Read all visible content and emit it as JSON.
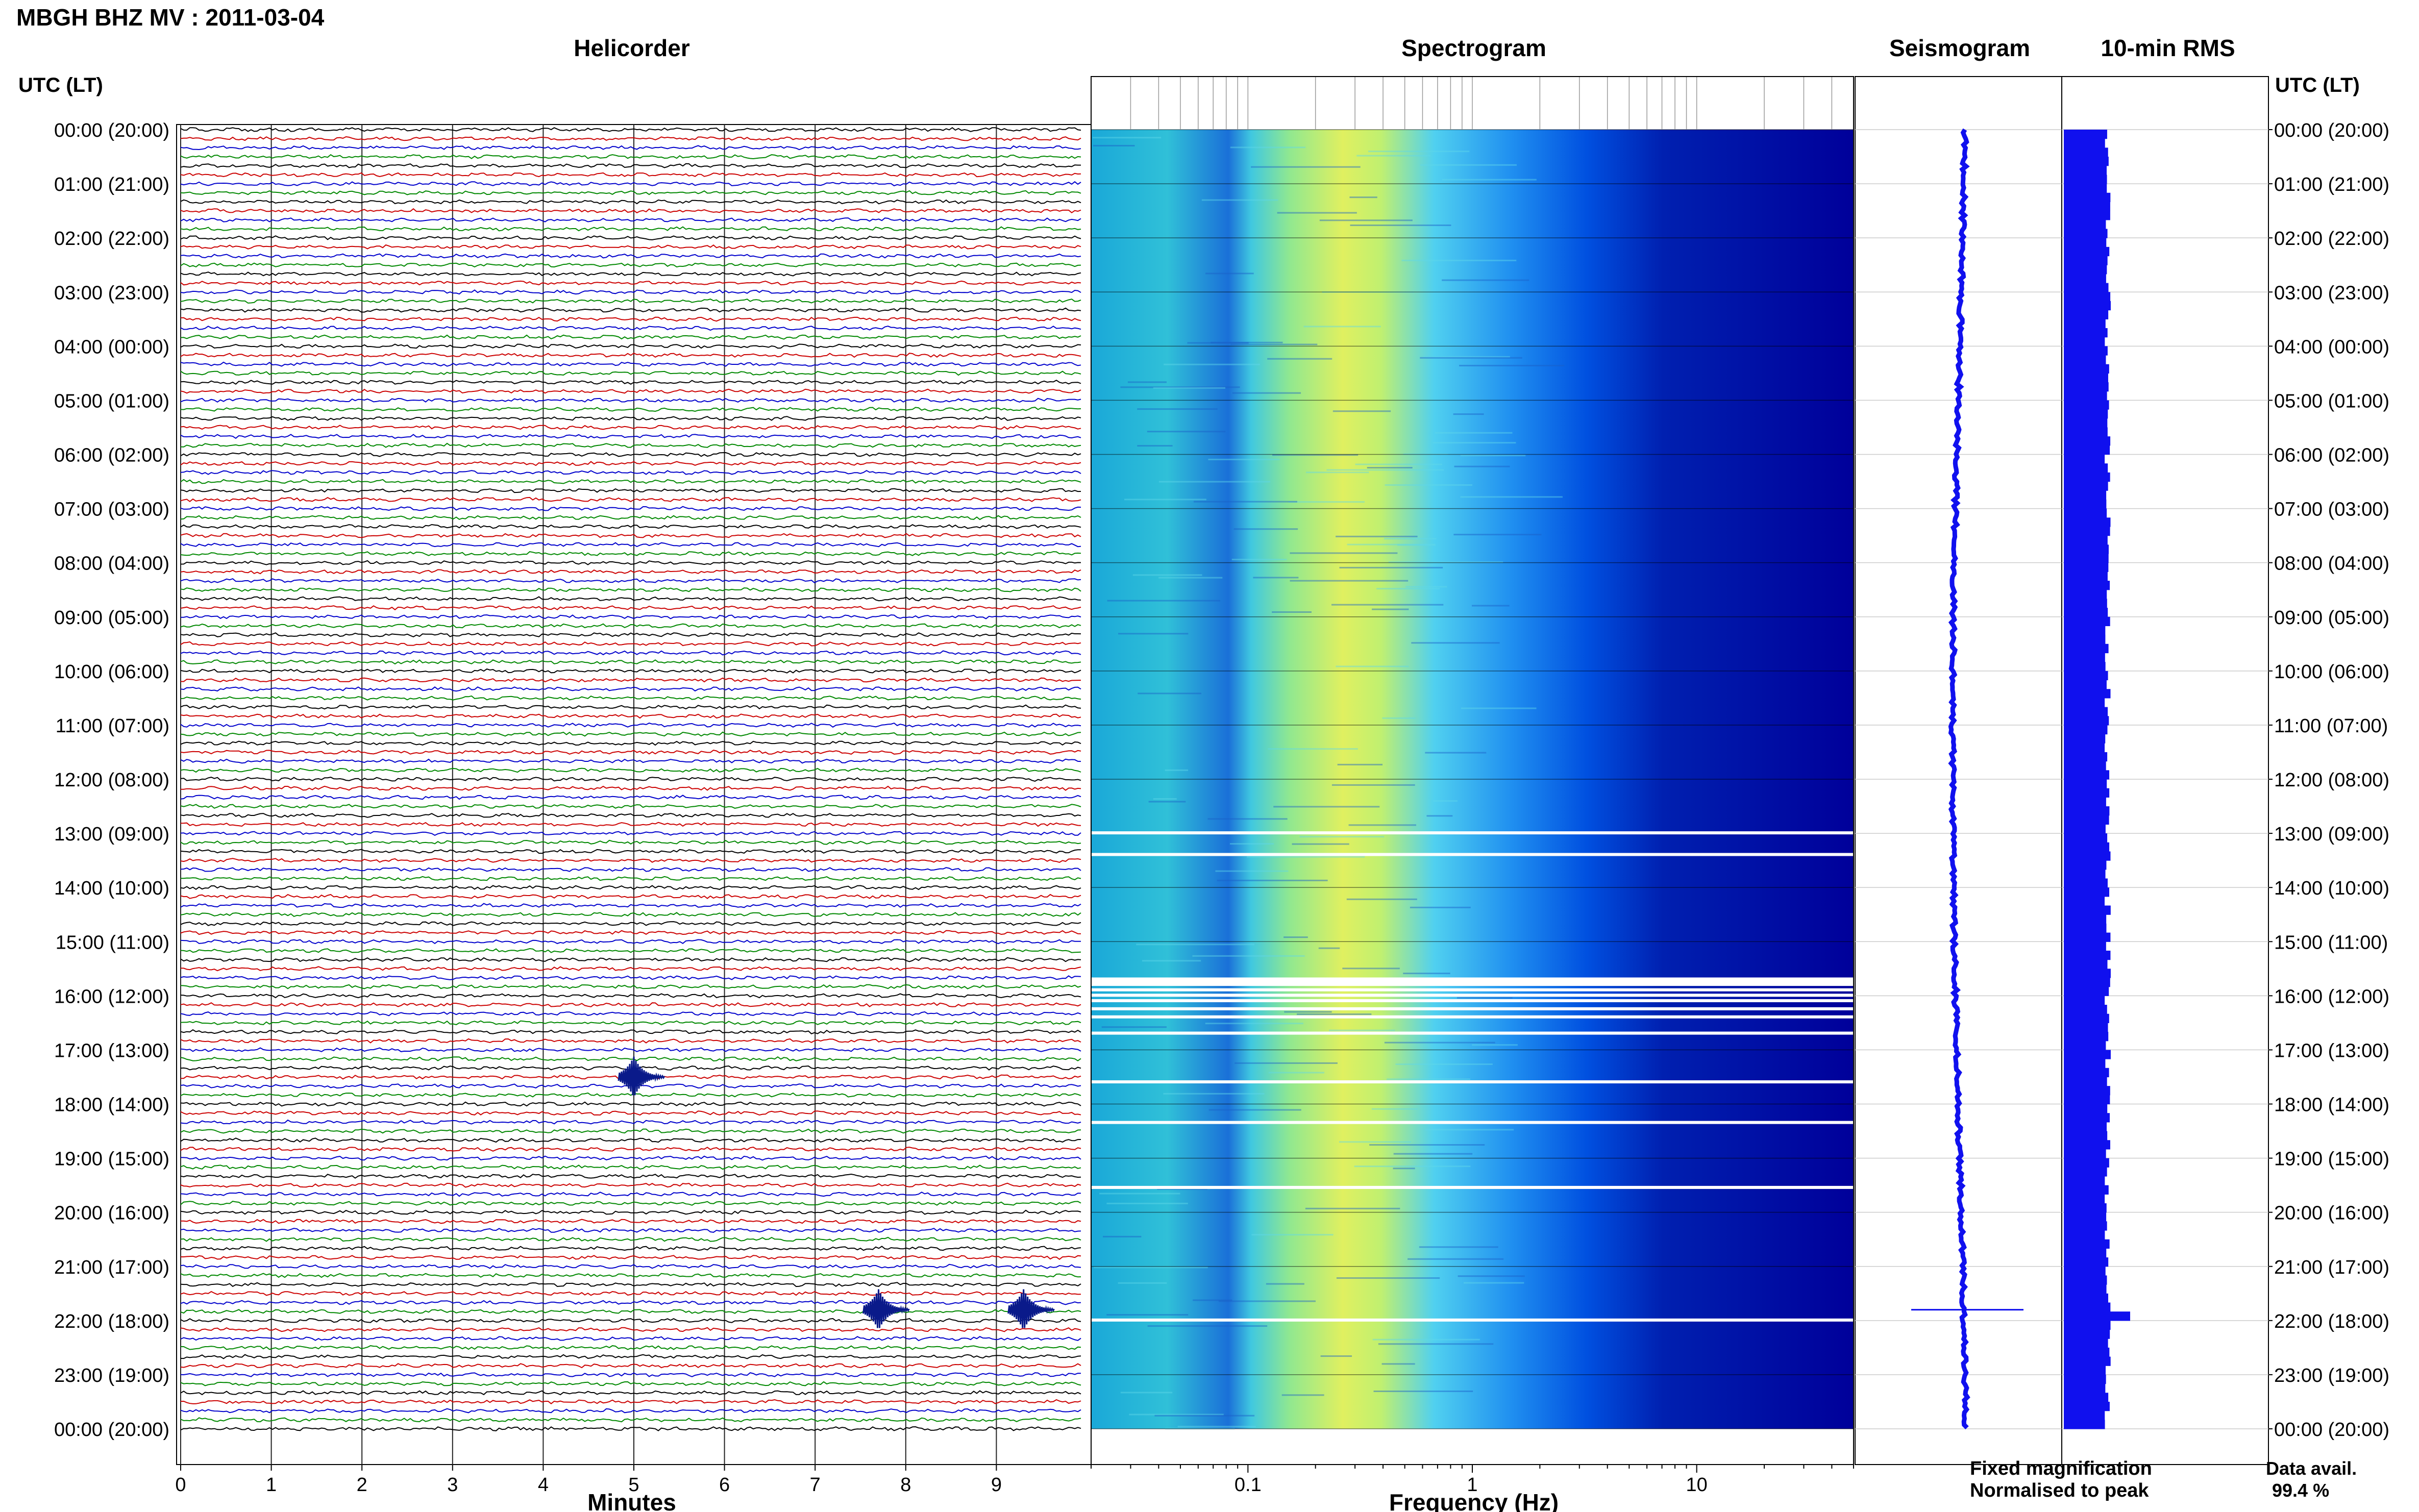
{
  "header": {
    "title": "MBGH BHZ MV : 2011-03-04"
  },
  "panels": {
    "helicorder": "Helicorder",
    "spectrogram": "Spectrogram",
    "seismogram": "Seismogram",
    "rms": "10-min RMS"
  },
  "axes": {
    "time_header_left": "UTC (LT)",
    "time_header_right": "UTC (LT)",
    "time_labels": [
      "00:00 (20:00)",
      "01:00 (21:00)",
      "02:00 (22:00)",
      "03:00 (23:00)",
      "04:00 (00:00)",
      "05:00 (01:00)",
      "06:00 (02:00)",
      "07:00 (03:00)",
      "08:00 (04:00)",
      "09:00 (05:00)",
      "10:00 (06:00)",
      "11:00 (07:00)",
      "12:00 (08:00)",
      "13:00 (09:00)",
      "14:00 (10:00)",
      "15:00 (11:00)",
      "16:00 (12:00)",
      "17:00 (13:00)",
      "18:00 (14:00)",
      "19:00 (15:00)",
      "20:00 (16:00)",
      "21:00 (17:00)",
      "22:00 (18:00)",
      "23:00 (19:00)",
      "00:00 (20:00)"
    ],
    "minutes_label": "Minutes",
    "minute_ticks": [
      "0",
      "1",
      "2",
      "3",
      "4",
      "5",
      "6",
      "7",
      "8",
      "9"
    ],
    "frequency_label": "Frequency (Hz)",
    "frequency_ticks": [
      "0.1",
      "1",
      "10"
    ]
  },
  "legend": {
    "fixed": "Fixed magnification",
    "normalised": "Normalised to peak",
    "fixed_color": "#1a1aff",
    "normalised_color": "#ff1a1a"
  },
  "availability": {
    "label": "Data avail.",
    "value": "99.4 %"
  },
  "colors": {
    "trace_cycle": [
      "#000000",
      "#cc0000",
      "#0000cc",
      "#008800"
    ],
    "spectrogram_low": "#00009a",
    "spectrogram_high": "#ffff50",
    "rms_bar": "#1010ee",
    "seismogram": "#1010ee"
  },
  "chart_data": [
    {
      "type": "line",
      "title": "Helicorder",
      "xlabel": "Minutes",
      "xlim": [
        0,
        10
      ],
      "ylim_hours": [
        0,
        24
      ],
      "trace_interval_minutes": 10,
      "traces_per_hour": 6,
      "events": [
        {
          "hour": 21.8,
          "minute": 7.7,
          "label": ""
        },
        {
          "hour": 21.8,
          "minute": 9.3,
          "label": ""
        },
        {
          "hour": 17.5,
          "minute": 5.0,
          "label": ""
        }
      ]
    },
    {
      "type": "heatmap",
      "title": "Spectrogram",
      "xlabel": "Frequency (Hz)",
      "xscale": "log",
      "xlim": [
        0.02,
        50
      ],
      "ylim_hours": [
        0,
        24
      ],
      "peak_frequency_hz": 0.3,
      "gap_hours": [
        13.0,
        13.4,
        15.7,
        15.8,
        15.9,
        16.0,
        16.1,
        16.25,
        16.4,
        16.7,
        17.6,
        18.35,
        19.55,
        22.0
      ]
    },
    {
      "type": "line",
      "title": "Seismogram",
      "ylim_hours": [
        0,
        24
      ],
      "event_hour": 21.8
    },
    {
      "type": "bar",
      "title": "10-min RMS",
      "ylim_hours": [
        0,
        24
      ],
      "spike_hour": 21.8
    }
  ]
}
